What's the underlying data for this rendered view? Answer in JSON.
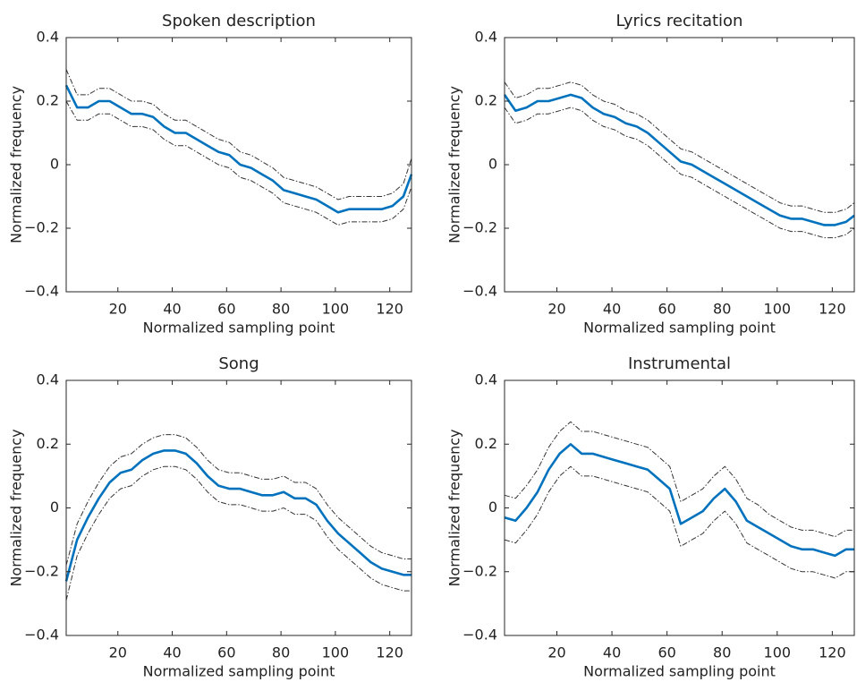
{
  "chart_data": [
    {
      "type": "line",
      "title": "Spoken description",
      "xlabel": "Normalized sampling point",
      "ylabel": "Normalized frequency",
      "x": [
        1,
        5,
        9,
        13,
        17,
        21,
        25,
        29,
        33,
        37,
        41,
        45,
        49,
        53,
        57,
        61,
        65,
        69,
        73,
        77,
        81,
        85,
        89,
        93,
        97,
        101,
        105,
        109,
        113,
        117,
        121,
        125,
        128
      ],
      "xlim": [
        1,
        128
      ],
      "xticks": [
        20,
        40,
        60,
        80,
        100,
        120
      ],
      "ylim": [
        -0.4,
        0.4
      ],
      "yticks": [
        {
          "value": -0.4,
          "label": "−0.4"
        },
        {
          "value": -0.2,
          "label": "−0.2"
        },
        0,
        0.2,
        0.4
      ],
      "series": [
        {
          "color": "#0072bd",
          "line_style": "solid",
          "values": [
            0.25,
            0.18,
            0.18,
            0.2,
            0.2,
            0.18,
            0.16,
            0.16,
            0.15,
            0.12,
            0.1,
            0.1,
            0.08,
            0.06,
            0.04,
            0.03,
            0.0,
            -0.01,
            -0.03,
            -0.05,
            -0.08,
            -0.09,
            -0.1,
            -0.11,
            -0.13,
            -0.15,
            -0.14,
            -0.14,
            -0.14,
            -0.14,
            -0.13,
            -0.1,
            -0.03
          ]
        },
        {
          "color": "#333333",
          "line_style": "dashdot",
          "values": [
            0.3,
            0.22,
            0.22,
            0.24,
            0.24,
            0.22,
            0.2,
            0.2,
            0.19,
            0.16,
            0.14,
            0.14,
            0.12,
            0.1,
            0.08,
            0.07,
            0.04,
            0.03,
            0.01,
            -0.01,
            -0.04,
            -0.05,
            -0.06,
            -0.07,
            -0.09,
            -0.11,
            -0.1,
            -0.1,
            -0.1,
            -0.1,
            -0.09,
            -0.06,
            0.02
          ]
        },
        {
          "color": "#333333",
          "line_style": "dashdot",
          "values": [
            0.2,
            0.14,
            0.14,
            0.16,
            0.16,
            0.14,
            0.12,
            0.12,
            0.11,
            0.08,
            0.06,
            0.06,
            0.04,
            0.02,
            0.0,
            -0.01,
            -0.04,
            -0.05,
            -0.07,
            -0.09,
            -0.12,
            -0.13,
            -0.14,
            -0.15,
            -0.17,
            -0.19,
            -0.18,
            -0.18,
            -0.18,
            -0.18,
            -0.17,
            -0.14,
            -0.07
          ]
        }
      ]
    },
    {
      "type": "line",
      "title": "Lyrics recitation",
      "xlabel": "Normalized sampling point",
      "ylabel": "Normalized frequency",
      "x": [
        1,
        5,
        9,
        13,
        17,
        21,
        25,
        29,
        33,
        37,
        41,
        45,
        49,
        53,
        57,
        61,
        65,
        69,
        73,
        77,
        81,
        85,
        89,
        93,
        97,
        101,
        105,
        109,
        113,
        117,
        121,
        125,
        128
      ],
      "xlim": [
        1,
        128
      ],
      "xticks": [
        20,
        40,
        60,
        80,
        100,
        120
      ],
      "ylim": [
        -0.4,
        0.4
      ],
      "yticks": [
        {
          "value": -0.4,
          "label": "−0.4"
        },
        {
          "value": -0.2,
          "label": "−0.2"
        },
        0,
        0.2,
        0.4
      ],
      "series": [
        {
          "color": "#0072bd",
          "line_style": "solid",
          "values": [
            0.22,
            0.17,
            0.18,
            0.2,
            0.2,
            0.21,
            0.22,
            0.21,
            0.18,
            0.16,
            0.15,
            0.13,
            0.12,
            0.1,
            0.07,
            0.04,
            0.01,
            0.0,
            -0.02,
            -0.04,
            -0.06,
            -0.08,
            -0.1,
            -0.12,
            -0.14,
            -0.16,
            -0.17,
            -0.17,
            -0.18,
            -0.19,
            -0.19,
            -0.18,
            -0.16
          ]
        },
        {
          "color": "#333333",
          "line_style": "dashdot",
          "values": [
            0.26,
            0.21,
            0.22,
            0.24,
            0.24,
            0.25,
            0.26,
            0.25,
            0.22,
            0.2,
            0.19,
            0.17,
            0.16,
            0.14,
            0.11,
            0.08,
            0.05,
            0.04,
            0.02,
            0.0,
            -0.02,
            -0.04,
            -0.06,
            -0.08,
            -0.1,
            -0.12,
            -0.13,
            -0.13,
            -0.14,
            -0.15,
            -0.15,
            -0.14,
            -0.12
          ]
        },
        {
          "color": "#333333",
          "line_style": "dashdot",
          "values": [
            0.18,
            0.13,
            0.14,
            0.16,
            0.16,
            0.17,
            0.18,
            0.17,
            0.14,
            0.12,
            0.11,
            0.09,
            0.08,
            0.06,
            0.03,
            0.0,
            -0.03,
            -0.04,
            -0.06,
            -0.08,
            -0.1,
            -0.12,
            -0.14,
            -0.16,
            -0.18,
            -0.2,
            -0.21,
            -0.21,
            -0.22,
            -0.23,
            -0.23,
            -0.22,
            -0.2
          ]
        }
      ]
    },
    {
      "type": "line",
      "title": "Song",
      "xlabel": "Normalized sampling point",
      "ylabel": "Normalized frequency",
      "x": [
        1,
        5,
        9,
        13,
        17,
        21,
        25,
        29,
        33,
        37,
        41,
        45,
        49,
        53,
        57,
        61,
        65,
        69,
        73,
        77,
        81,
        85,
        89,
        93,
        97,
        101,
        105,
        109,
        113,
        117,
        121,
        125,
        128
      ],
      "xlim": [
        1,
        128
      ],
      "xticks": [
        20,
        40,
        60,
        80,
        100,
        120
      ],
      "ylim": [
        -0.4,
        0.4
      ],
      "yticks": [
        {
          "value": -0.4,
          "label": "−0.4"
        },
        {
          "value": -0.2,
          "label": "−0.2"
        },
        0,
        0.2,
        0.4
      ],
      "series": [
        {
          "color": "#0072bd",
          "line_style": "solid",
          "values": [
            -0.23,
            -0.1,
            -0.03,
            0.03,
            0.08,
            0.11,
            0.12,
            0.15,
            0.17,
            0.18,
            0.18,
            0.17,
            0.14,
            0.1,
            0.07,
            0.06,
            0.06,
            0.05,
            0.04,
            0.04,
            0.05,
            0.03,
            0.03,
            0.01,
            -0.04,
            -0.08,
            -0.11,
            -0.14,
            -0.17,
            -0.19,
            -0.2,
            -0.21,
            -0.21
          ]
        },
        {
          "color": "#333333",
          "line_style": "dashdot",
          "values": [
            -0.18,
            -0.05,
            0.02,
            0.08,
            0.13,
            0.16,
            0.17,
            0.2,
            0.22,
            0.23,
            0.23,
            0.22,
            0.19,
            0.15,
            0.12,
            0.11,
            0.11,
            0.1,
            0.09,
            0.09,
            0.1,
            0.08,
            0.08,
            0.06,
            0.01,
            -0.03,
            -0.06,
            -0.09,
            -0.12,
            -0.14,
            -0.15,
            -0.16,
            -0.16
          ]
        },
        {
          "color": "#333333",
          "line_style": "dashdot",
          "values": [
            -0.29,
            -0.15,
            -0.08,
            -0.02,
            0.03,
            0.06,
            0.07,
            0.1,
            0.12,
            0.13,
            0.13,
            0.12,
            0.09,
            0.05,
            0.02,
            0.01,
            0.01,
            0.0,
            -0.01,
            -0.01,
            0.0,
            -0.02,
            -0.02,
            -0.04,
            -0.09,
            -0.13,
            -0.16,
            -0.19,
            -0.22,
            -0.24,
            -0.25,
            -0.26,
            -0.26
          ]
        }
      ]
    },
    {
      "type": "line",
      "title": "Instrumental",
      "xlabel": "Normalized sampling point",
      "ylabel": "Normalized frequency",
      "x": [
        1,
        5,
        9,
        13,
        17,
        21,
        25,
        29,
        33,
        37,
        41,
        45,
        49,
        53,
        57,
        61,
        65,
        69,
        73,
        77,
        81,
        85,
        89,
        93,
        97,
        101,
        105,
        109,
        113,
        117,
        121,
        125,
        128
      ],
      "xlim": [
        1,
        128
      ],
      "xticks": [
        20,
        40,
        60,
        80,
        100,
        120
      ],
      "ylim": [
        -0.4,
        0.4
      ],
      "yticks": [
        {
          "value": -0.4,
          "label": "−0.4"
        },
        {
          "value": -0.2,
          "label": "−0.2"
        },
        0,
        0.2,
        0.4
      ],
      "series": [
        {
          "color": "#0072bd",
          "line_style": "solid",
          "values": [
            -0.03,
            -0.04,
            0.0,
            0.05,
            0.12,
            0.17,
            0.2,
            0.17,
            0.17,
            0.16,
            0.15,
            0.14,
            0.13,
            0.12,
            0.09,
            0.06,
            -0.05,
            -0.03,
            -0.01,
            0.03,
            0.06,
            0.02,
            -0.04,
            -0.06,
            -0.08,
            -0.1,
            -0.12,
            -0.13,
            -0.13,
            -0.14,
            -0.15,
            -0.13,
            -0.13
          ]
        },
        {
          "color": "#333333",
          "line_style": "dashdot",
          "values": [
            0.04,
            0.03,
            0.07,
            0.12,
            0.19,
            0.24,
            0.27,
            0.24,
            0.24,
            0.23,
            0.22,
            0.21,
            0.2,
            0.19,
            0.16,
            0.13,
            0.02,
            0.04,
            0.06,
            0.1,
            0.13,
            0.09,
            0.03,
            0.01,
            -0.02,
            -0.04,
            -0.06,
            -0.07,
            -0.07,
            -0.08,
            -0.09,
            -0.07,
            -0.07
          ]
        },
        {
          "color": "#333333",
          "line_style": "dashdot",
          "values": [
            -0.1,
            -0.11,
            -0.07,
            -0.02,
            0.05,
            0.1,
            0.13,
            0.1,
            0.1,
            0.09,
            0.08,
            0.07,
            0.06,
            0.05,
            0.02,
            -0.01,
            -0.12,
            -0.1,
            -0.08,
            -0.04,
            -0.01,
            -0.05,
            -0.11,
            -0.13,
            -0.15,
            -0.17,
            -0.19,
            -0.2,
            -0.2,
            -0.21,
            -0.22,
            -0.2,
            -0.2
          ]
        }
      ]
    }
  ]
}
